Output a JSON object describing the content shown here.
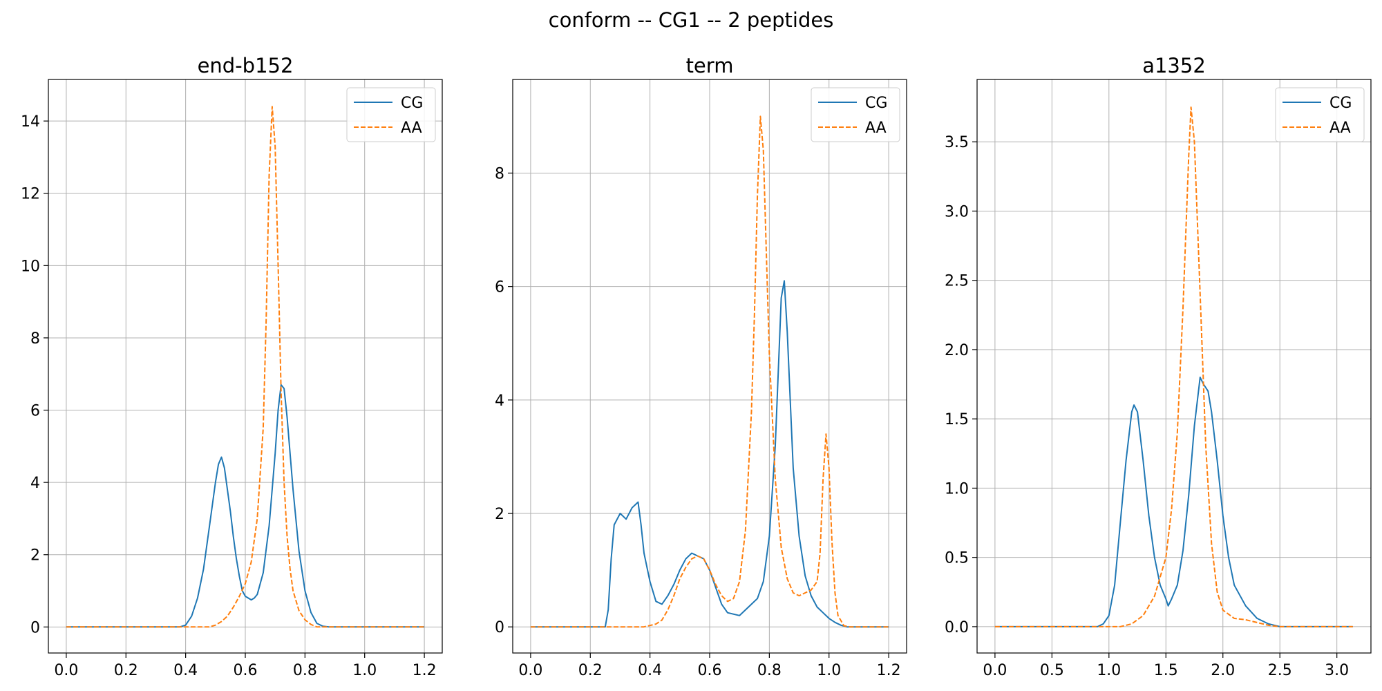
{
  "figure": {
    "suptitle": "conform -- CG1 -- 2 peptides"
  },
  "chart_data": [
    {
      "type": "line",
      "title": "end-b152",
      "xlabel": "",
      "ylabel": "",
      "xlim": [
        -0.06,
        1.26
      ],
      "ylim": [
        -0.72,
        15.15
      ],
      "xticks": [
        0.0,
        0.2,
        0.4,
        0.6,
        0.8,
        1.0,
        1.2
      ],
      "xtick_labels": [
        "0.0",
        "0.2",
        "0.4",
        "0.6",
        "0.8",
        "1.0",
        "1.2"
      ],
      "yticks": [
        0,
        2,
        4,
        6,
        8,
        10,
        12,
        14
      ],
      "ytick_labels": [
        "0",
        "2",
        "4",
        "6",
        "8",
        "10",
        "12",
        "14"
      ],
      "grid": true,
      "legend": "top-right",
      "series": [
        {
          "name": "CG",
          "style": "solid",
          "color": "#1f77b4",
          "points": [
            [
              0.0,
              0
            ],
            [
              0.38,
              0
            ],
            [
              0.4,
              0.05
            ],
            [
              0.42,
              0.3
            ],
            [
              0.44,
              0.8
            ],
            [
              0.46,
              1.6
            ],
            [
              0.48,
              2.8
            ],
            [
              0.5,
              4.0
            ],
            [
              0.51,
              4.5
            ],
            [
              0.52,
              4.7
            ],
            [
              0.53,
              4.4
            ],
            [
              0.54,
              3.8
            ],
            [
              0.55,
              3.2
            ],
            [
              0.56,
              2.5
            ],
            [
              0.57,
              1.9
            ],
            [
              0.58,
              1.4
            ],
            [
              0.59,
              1.0
            ],
            [
              0.6,
              0.85
            ],
            [
              0.61,
              0.8
            ],
            [
              0.62,
              0.75
            ],
            [
              0.63,
              0.8
            ],
            [
              0.64,
              0.9
            ],
            [
              0.66,
              1.5
            ],
            [
              0.68,
              2.8
            ],
            [
              0.7,
              4.8
            ],
            [
              0.71,
              6.0
            ],
            [
              0.72,
              6.7
            ],
            [
              0.73,
              6.6
            ],
            [
              0.74,
              5.8
            ],
            [
              0.76,
              3.8
            ],
            [
              0.78,
              2.1
            ],
            [
              0.8,
              1.0
            ],
            [
              0.82,
              0.4
            ],
            [
              0.84,
              0.1
            ],
            [
              0.86,
              0.02
            ],
            [
              0.88,
              0
            ],
            [
              1.2,
              0
            ]
          ]
        },
        {
          "name": "AA",
          "style": "dashed",
          "color": "#ff7f0e",
          "points": [
            [
              0.0,
              0
            ],
            [
              0.48,
              0
            ],
            [
              0.5,
              0.05
            ],
            [
              0.52,
              0.15
            ],
            [
              0.54,
              0.3
            ],
            [
              0.56,
              0.55
            ],
            [
              0.58,
              0.85
            ],
            [
              0.6,
              1.2
            ],
            [
              0.62,
              1.8
            ],
            [
              0.64,
              3.0
            ],
            [
              0.66,
              5.5
            ],
            [
              0.67,
              8.5
            ],
            [
              0.68,
              12.5
            ],
            [
              0.69,
              14.4
            ],
            [
              0.7,
              13.3
            ],
            [
              0.71,
              10.0
            ],
            [
              0.72,
              6.5
            ],
            [
              0.73,
              4.0
            ],
            [
              0.74,
              2.5
            ],
            [
              0.75,
              1.6
            ],
            [
              0.76,
              1.0
            ],
            [
              0.78,
              0.45
            ],
            [
              0.8,
              0.2
            ],
            [
              0.82,
              0.07
            ],
            [
              0.84,
              0
            ],
            [
              1.2,
              0
            ]
          ]
        }
      ]
    },
    {
      "type": "line",
      "title": "term",
      "xlabel": "",
      "ylabel": "",
      "xlim": [
        -0.06,
        1.26
      ],
      "ylim": [
        -0.46,
        9.65
      ],
      "xticks": [
        0.0,
        0.2,
        0.4,
        0.6,
        0.8,
        1.0,
        1.2
      ],
      "xtick_labels": [
        "0.0",
        "0.2",
        "0.4",
        "0.6",
        "0.8",
        "1.0",
        "1.2"
      ],
      "yticks": [
        0,
        2,
        4,
        6,
        8
      ],
      "ytick_labels": [
        "0",
        "2",
        "4",
        "6",
        "8"
      ],
      "grid": true,
      "legend": "top-right",
      "series": [
        {
          "name": "CG",
          "style": "solid",
          "color": "#1f77b4",
          "points": [
            [
              0.0,
              0
            ],
            [
              0.25,
              0
            ],
            [
              0.26,
              0.3
            ],
            [
              0.27,
              1.2
            ],
            [
              0.28,
              1.8
            ],
            [
              0.3,
              2.0
            ],
            [
              0.32,
              1.9
            ],
            [
              0.34,
              2.1
            ],
            [
              0.36,
              2.2
            ],
            [
              0.37,
              1.8
            ],
            [
              0.38,
              1.3
            ],
            [
              0.4,
              0.8
            ],
            [
              0.42,
              0.45
            ],
            [
              0.44,
              0.4
            ],
            [
              0.46,
              0.55
            ],
            [
              0.48,
              0.75
            ],
            [
              0.5,
              1.0
            ],
            [
              0.52,
              1.2
            ],
            [
              0.54,
              1.3
            ],
            [
              0.56,
              1.25
            ],
            [
              0.58,
              1.2
            ],
            [
              0.6,
              1.0
            ],
            [
              0.62,
              0.7
            ],
            [
              0.64,
              0.4
            ],
            [
              0.66,
              0.25
            ],
            [
              0.7,
              0.2
            ],
            [
              0.72,
              0.3
            ],
            [
              0.74,
              0.4
            ],
            [
              0.76,
              0.5
            ],
            [
              0.78,
              0.8
            ],
            [
              0.8,
              1.6
            ],
            [
              0.82,
              3.2
            ],
            [
              0.83,
              4.5
            ],
            [
              0.84,
              5.8
            ],
            [
              0.85,
              6.1
            ],
            [
              0.86,
              5.2
            ],
            [
              0.87,
              4.0
            ],
            [
              0.88,
              2.8
            ],
            [
              0.9,
              1.6
            ],
            [
              0.92,
              0.9
            ],
            [
              0.94,
              0.55
            ],
            [
              0.96,
              0.35
            ],
            [
              0.98,
              0.25
            ],
            [
              1.0,
              0.15
            ],
            [
              1.02,
              0.08
            ],
            [
              1.04,
              0.03
            ],
            [
              1.06,
              0
            ],
            [
              1.2,
              0
            ]
          ]
        },
        {
          "name": "AA",
          "style": "dashed",
          "color": "#ff7f0e",
          "points": [
            [
              0.0,
              0
            ],
            [
              0.38,
              0
            ],
            [
              0.42,
              0.05
            ],
            [
              0.44,
              0.12
            ],
            [
              0.46,
              0.3
            ],
            [
              0.48,
              0.55
            ],
            [
              0.5,
              0.85
            ],
            [
              0.52,
              1.05
            ],
            [
              0.54,
              1.2
            ],
            [
              0.56,
              1.25
            ],
            [
              0.58,
              1.2
            ],
            [
              0.6,
              1.0
            ],
            [
              0.62,
              0.75
            ],
            [
              0.64,
              0.55
            ],
            [
              0.66,
              0.45
            ],
            [
              0.68,
              0.5
            ],
            [
              0.7,
              0.8
            ],
            [
              0.72,
              1.7
            ],
            [
              0.74,
              3.8
            ],
            [
              0.75,
              5.5
            ],
            [
              0.76,
              7.6
            ],
            [
              0.77,
              9.0
            ],
            [
              0.78,
              8.4
            ],
            [
              0.79,
              6.6
            ],
            [
              0.8,
              4.8
            ],
            [
              0.82,
              2.6
            ],
            [
              0.84,
              1.4
            ],
            [
              0.86,
              0.85
            ],
            [
              0.88,
              0.6
            ],
            [
              0.9,
              0.55
            ],
            [
              0.92,
              0.6
            ],
            [
              0.94,
              0.65
            ],
            [
              0.96,
              0.8
            ],
            [
              0.97,
              1.3
            ],
            [
              0.98,
              2.6
            ],
            [
              0.99,
              3.4
            ],
            [
              1.0,
              2.8
            ],
            [
              1.01,
              1.5
            ],
            [
              1.02,
              0.6
            ],
            [
              1.03,
              0.2
            ],
            [
              1.05,
              0.02
            ],
            [
              1.07,
              0
            ],
            [
              1.2,
              0
            ]
          ]
        }
      ]
    },
    {
      "type": "line",
      "title": "a1352",
      "xlabel": "",
      "ylabel": "",
      "xlim": [
        -0.157,
        3.299
      ],
      "ylim": [
        -0.19,
        3.95
      ],
      "xticks": [
        0.0,
        0.5,
        1.0,
        1.5,
        2.0,
        2.5,
        3.0
      ],
      "xtick_labels": [
        "0.0",
        "0.5",
        "1.0",
        "1.5",
        "2.0",
        "2.5",
        "3.0"
      ],
      "yticks": [
        0.0,
        0.5,
        1.0,
        1.5,
        2.0,
        2.5,
        3.0,
        3.5
      ],
      "ytick_labels": [
        "0.0",
        "0.5",
        "1.0",
        "1.5",
        "2.0",
        "2.5",
        "3.0",
        "3.5"
      ],
      "grid": true,
      "legend": "top-right",
      "series": [
        {
          "name": "CG",
          "style": "solid",
          "color": "#1f77b4",
          "points": [
            [
              0.0,
              0
            ],
            [
              0.9,
              0
            ],
            [
              0.95,
              0.02
            ],
            [
              1.0,
              0.08
            ],
            [
              1.05,
              0.3
            ],
            [
              1.1,
              0.75
            ],
            [
              1.15,
              1.2
            ],
            [
              1.2,
              1.55
            ],
            [
              1.22,
              1.6
            ],
            [
              1.25,
              1.55
            ],
            [
              1.3,
              1.2
            ],
            [
              1.35,
              0.8
            ],
            [
              1.4,
              0.5
            ],
            [
              1.45,
              0.3
            ],
            [
              1.5,
              0.2
            ],
            [
              1.52,
              0.15
            ],
            [
              1.55,
              0.2
            ],
            [
              1.6,
              0.3
            ],
            [
              1.65,
              0.55
            ],
            [
              1.7,
              0.95
            ],
            [
              1.75,
              1.45
            ],
            [
              1.8,
              1.8
            ],
            [
              1.83,
              1.75
            ],
            [
              1.87,
              1.7
            ],
            [
              1.9,
              1.55
            ],
            [
              1.95,
              1.2
            ],
            [
              2.0,
              0.8
            ],
            [
              2.05,
              0.5
            ],
            [
              2.1,
              0.3
            ],
            [
              2.2,
              0.15
            ],
            [
              2.3,
              0.06
            ],
            [
              2.4,
              0.02
            ],
            [
              2.5,
              0
            ],
            [
              3.14,
              0
            ]
          ]
        },
        {
          "name": "AA",
          "style": "dashed",
          "color": "#ff7f0e",
          "points": [
            [
              0.0,
              0
            ],
            [
              1.1,
              0
            ],
            [
              1.2,
              0.02
            ],
            [
              1.3,
              0.08
            ],
            [
              1.4,
              0.22
            ],
            [
              1.5,
              0.5
            ],
            [
              1.55,
              0.85
            ],
            [
              1.6,
              1.4
            ],
            [
              1.65,
              2.3
            ],
            [
              1.7,
              3.4
            ],
            [
              1.72,
              3.75
            ],
            [
              1.75,
              3.5
            ],
            [
              1.8,
              2.4
            ],
            [
              1.85,
              1.3
            ],
            [
              1.9,
              0.6
            ],
            [
              1.95,
              0.25
            ],
            [
              2.0,
              0.12
            ],
            [
              2.1,
              0.06
            ],
            [
              2.2,
              0.05
            ],
            [
              2.3,
              0.03
            ],
            [
              2.4,
              0.01
            ],
            [
              2.5,
              0
            ],
            [
              3.14,
              0
            ]
          ]
        }
      ]
    }
  ]
}
